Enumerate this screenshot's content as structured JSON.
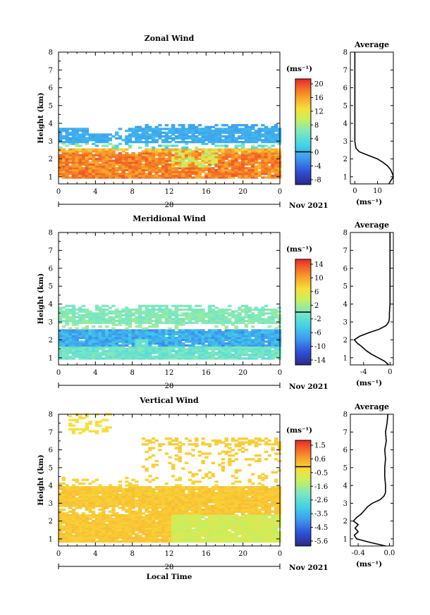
{
  "chart_data": [
    {
      "type": "heatmap",
      "title": "Zonal Wind",
      "ylabel": "Height (km)",
      "unit_label": "(ms⁻¹)",
      "yticks": [
        "1",
        "2",
        "3",
        "4",
        "5",
        "6",
        "7",
        "8"
      ],
      "xticks": [
        "0",
        "4",
        "8",
        "12",
        "16",
        "20",
        "0"
      ],
      "date_label": "28",
      "month_label": "Nov 2021",
      "colorbar_ticks": [
        "20",
        "16",
        "12",
        "8",
        "4",
        "0",
        "-4",
        "-8"
      ],
      "colorbar_range": [
        -10,
        22
      ],
      "ylim": [
        0.6,
        8.0
      ],
      "xlim": [
        0,
        24
      ],
      "profile": {
        "title": "Average",
        "xticks": [
          "0",
          "10"
        ],
        "xlim": [
          -2,
          17
        ],
        "xlabel": "(ms⁻¹)",
        "heights": [
          0.6,
          0.8,
          1.0,
          1.2,
          1.4,
          1.6,
          1.8,
          2.0,
          2.2,
          2.4,
          2.6,
          2.8,
          3.0,
          3.2,
          3.5,
          4.0,
          4.5,
          5.0,
          5.5,
          6.0,
          6.5,
          7.0,
          7.5,
          8.0
        ],
        "values": [
          15,
          16,
          17,
          16.5,
          15.8,
          14.5,
          12.5,
          10,
          6,
          2,
          0.5,
          0.2,
          0,
          0,
          0,
          0,
          0,
          0,
          0,
          0,
          0,
          0,
          0,
          0
        ]
      }
    },
    {
      "type": "heatmap",
      "title": "Meridional Wind",
      "ylabel": "Height (km)",
      "unit_label": "(ms⁻¹)",
      "yticks": [
        "1",
        "2",
        "3",
        "4",
        "5",
        "6",
        "7",
        "8"
      ],
      "xticks": [
        "0",
        "4",
        "8",
        "12",
        "16",
        "20",
        "0"
      ],
      "date_label": "28",
      "month_label": "Nov 2021",
      "colorbar_ticks": [
        "14",
        "10",
        "6",
        "2",
        "-2",
        "-6",
        "-10",
        "-14"
      ],
      "colorbar_range": [
        -16,
        16
      ],
      "ylim": [
        0.6,
        8.0
      ],
      "xlim": [
        0,
        24
      ],
      "profile": {
        "title": "Average",
        "xticks": [
          "-4",
          "0"
        ],
        "xlim": [
          -6,
          0.5
        ],
        "xlabel": "(ms⁻¹)",
        "heights": [
          0.6,
          0.8,
          1.0,
          1.2,
          1.4,
          1.6,
          1.8,
          2.0,
          2.2,
          2.4,
          2.6,
          2.8,
          3.0,
          3.2,
          3.5,
          4.0,
          4.5,
          5.0,
          5.5,
          6.0,
          6.5,
          7.0,
          7.5,
          8.0
        ],
        "values": [
          -0.2,
          -0.8,
          -1.8,
          -2.8,
          -3.6,
          -4.2,
          -4.9,
          -5.4,
          -4.6,
          -3.2,
          -1.6,
          -0.6,
          -0.2,
          -0.1,
          -0.1,
          0,
          0,
          0,
          0,
          0,
          0,
          0,
          0,
          0
        ]
      }
    },
    {
      "type": "heatmap",
      "title": "Vertical Wind",
      "ylabel": "Height (km)",
      "xlabel": "Local Time",
      "unit_label": "(ms⁻¹)",
      "yticks": [
        "1",
        "2",
        "3",
        "4",
        "5",
        "6",
        "7",
        "8"
      ],
      "xticks": [
        "0",
        "4",
        "8",
        "12",
        "16",
        "20",
        "0"
      ],
      "date_label": "28",
      "month_label": "Nov 2021",
      "colorbar_ticks": [
        "1.5",
        "0.6",
        "-0.5",
        "-1.6",
        "-2.6",
        "-3.5",
        "-4.5",
        "-5.6"
      ],
      "colorbar_range": [
        -6.0,
        2.0
      ],
      "ylim": [
        0.6,
        8.0
      ],
      "xlim": [
        0,
        24
      ],
      "profile": {
        "title": "Average",
        "xticks": [
          "-0.4",
          "0.0"
        ],
        "xlim": [
          -0.5,
          0.05
        ],
        "xlabel": "(ms⁻¹)",
        "heights": [
          0.6,
          0.8,
          1.0,
          1.2,
          1.4,
          1.6,
          1.8,
          2.0,
          2.2,
          2.4,
          2.6,
          2.8,
          3.0,
          3.2,
          3.4,
          3.6,
          4.0,
          4.5,
          5.0,
          5.5,
          6.0,
          6.5,
          7.0,
          7.5,
          8.0
        ],
        "values": [
          -0.05,
          -0.25,
          -0.42,
          -0.45,
          -0.4,
          -0.44,
          -0.4,
          -0.46,
          -0.42,
          -0.36,
          -0.32,
          -0.28,
          -0.22,
          -0.12,
          -0.07,
          -0.05,
          -0.05,
          -0.06,
          -0.06,
          -0.05,
          -0.06,
          -0.04,
          -0.05,
          -0.03,
          -0.02
        ]
      }
    }
  ]
}
